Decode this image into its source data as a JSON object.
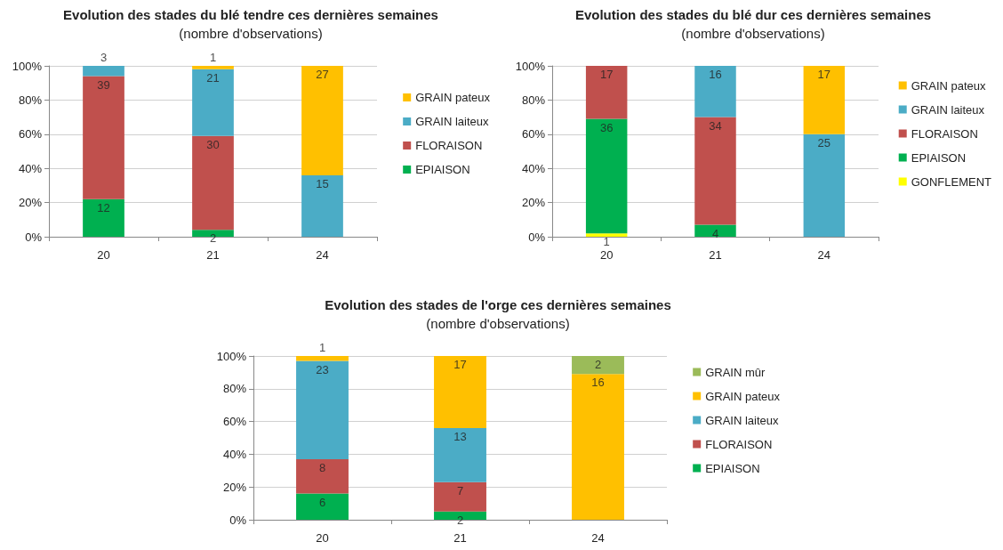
{
  "chart_data": [
    {
      "type": "bar",
      "title": "Evolution des stades du blé tendre ces dernières semaines",
      "subtitle": "(nombre d'observations)",
      "categories": [
        "20",
        "21",
        "24"
      ],
      "stacked": true,
      "ylim": [
        0,
        100
      ],
      "yticks": [
        {
          "value": 0,
          "label": "0%"
        },
        {
          "value": 20,
          "label": "20%"
        },
        {
          "value": 40,
          "label": "40%"
        },
        {
          "value": 60,
          "label": "60%"
        },
        {
          "value": 80,
          "label": "80%"
        },
        {
          "value": 100,
          "label": "100%"
        }
      ],
      "grid": "y",
      "legend": "right",
      "series": [
        {
          "name": "EPIAISON",
          "color": "#00b050",
          "values": [
            22,
            4,
            null
          ]
        },
        {
          "name": "FLORAISON",
          "color": "#c0504d",
          "values": [
            72,
            55,
            null
          ]
        },
        {
          "name": "GRAIN laiteux",
          "color": "#4bacc6",
          "values": [
            6,
            39,
            36
          ]
        },
        {
          "name": "GRAIN pateux",
          "color": "#ffc000",
          "values": [
            null,
            2,
            64
          ]
        }
      ],
      "annotations": [
        {
          "text": "12",
          "x": "20",
          "y": 22
        },
        {
          "text": "39",
          "x": "20",
          "y": 94
        },
        {
          "text": "3",
          "x": "20",
          "y": 100
        },
        {
          "text": "2",
          "x": "21",
          "y": 4
        },
        {
          "text": "30",
          "x": "21",
          "y": 59
        },
        {
          "text": "21",
          "x": "21",
          "y": 98
        },
        {
          "text": "1",
          "x": "21",
          "y": 100
        },
        {
          "text": "15",
          "x": "24",
          "y": 36
        },
        {
          "text": "27",
          "x": "24",
          "y": 100
        }
      ]
    },
    {
      "type": "bar",
      "title": "Evolution des stades du blé dur ces dernières semaines",
      "subtitle": "(nombre d'observations)",
      "categories": [
        "20",
        "21",
        "24"
      ],
      "stacked": true,
      "ylim": [
        0,
        100
      ],
      "yticks": [
        {
          "value": 0,
          "label": "0%"
        },
        {
          "value": 20,
          "label": "20%"
        },
        {
          "value": 40,
          "label": "40%"
        },
        {
          "value": 60,
          "label": "60%"
        },
        {
          "value": 80,
          "label": "80%"
        },
        {
          "value": 100,
          "label": "100%"
        }
      ],
      "grid": "y",
      "legend": "right",
      "series": [
        {
          "name": "GONFLEMENT",
          "color": "#ffff00",
          "values": [
            2,
            null,
            null
          ]
        },
        {
          "name": "EPIAISON",
          "color": "#00b050",
          "values": [
            67,
            7,
            null
          ]
        },
        {
          "name": "FLORAISON",
          "color": "#c0504d",
          "values": [
            31,
            63,
            null
          ]
        },
        {
          "name": "GRAIN laiteux",
          "color": "#4bacc6",
          "values": [
            null,
            30,
            60
          ]
        },
        {
          "name": "GRAIN pateux",
          "color": "#ffc000",
          "values": [
            null,
            null,
            40
          ]
        }
      ],
      "annotations": [
        {
          "text": "1",
          "x": "20",
          "y": 2
        },
        {
          "text": "36",
          "x": "20",
          "y": 69
        },
        {
          "text": "17",
          "x": "20",
          "y": 100
        },
        {
          "text": "4",
          "x": "21",
          "y": 7
        },
        {
          "text": "34",
          "x": "21",
          "y": 70
        },
        {
          "text": "16",
          "x": "21",
          "y": 100
        },
        {
          "text": "25",
          "x": "24",
          "y": 60
        },
        {
          "text": "17",
          "x": "24",
          "y": 100
        }
      ]
    },
    {
      "type": "bar",
      "title": "Evolution des stades de l'orge ces dernières semaines",
      "subtitle": "(nombre d'observations)",
      "categories": [
        "20",
        "21",
        "24"
      ],
      "stacked": true,
      "ylim": [
        0,
        100
      ],
      "yticks": [
        {
          "value": 0,
          "label": "0%"
        },
        {
          "value": 20,
          "label": "20%"
        },
        {
          "value": 40,
          "label": "40%"
        },
        {
          "value": 60,
          "label": "60%"
        },
        {
          "value": 80,
          "label": "80%"
        },
        {
          "value": 100,
          "label": "100%"
        }
      ],
      "grid": "y",
      "legend": "right",
      "series": [
        {
          "name": "EPIAISON",
          "color": "#00b050",
          "values": [
            16,
            5,
            null
          ]
        },
        {
          "name": "FLORAISON",
          "color": "#c0504d",
          "values": [
            21,
            18,
            null
          ]
        },
        {
          "name": "GRAIN laiteux",
          "color": "#4bacc6",
          "values": [
            60,
            33,
            null
          ]
        },
        {
          "name": "GRAIN pateux",
          "color": "#ffc000",
          "values": [
            3,
            44,
            89
          ]
        },
        {
          "name": "GRAIN mûr",
          "color": "#9bbb59",
          "values": [
            null,
            null,
            11
          ]
        }
      ],
      "annotations": [
        {
          "text": "6",
          "x": "20",
          "y": 16
        },
        {
          "text": "8",
          "x": "20",
          "y": 37
        },
        {
          "text": "23",
          "x": "20",
          "y": 97
        },
        {
          "text": "1",
          "x": "20",
          "y": 100
        },
        {
          "text": "2",
          "x": "21",
          "y": 5
        },
        {
          "text": "7",
          "x": "21",
          "y": 23
        },
        {
          "text": "13",
          "x": "21",
          "y": 56
        },
        {
          "text": "17",
          "x": "21",
          "y": 100
        },
        {
          "text": "16",
          "x": "24",
          "y": 89
        },
        {
          "text": "2",
          "x": "24",
          "y": 100
        }
      ]
    }
  ]
}
